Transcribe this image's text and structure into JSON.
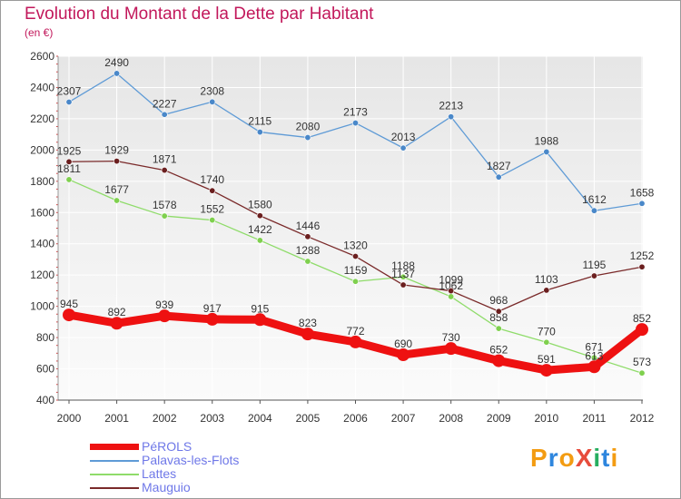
{
  "header": {
    "title": "Evolution du Montant de la Dette par Habitant",
    "subtitle": "(en €)"
  },
  "logo": {
    "text": "ProXiti",
    "colors": [
      "#f39c12",
      "#2e86de",
      "#f39c12",
      "#e74c3c",
      "#27ae60",
      "#2e86de",
      "#f39c12"
    ]
  },
  "chart_data": {
    "type": "line",
    "x": [
      "2000",
      "2001",
      "2002",
      "2003",
      "2004",
      "2005",
      "2006",
      "2007",
      "2008",
      "2009",
      "2010",
      "2011",
      "2012"
    ],
    "ylim": [
      400,
      2600
    ],
    "yticks": [
      "400",
      "600",
      "800",
      "1000",
      "1200",
      "1400",
      "1600",
      "1800",
      "2000",
      "2200",
      "2400",
      "2600"
    ],
    "grid": true,
    "legend_position": "bottom-left",
    "series": [
      {
        "name": "PéROLS",
        "color": "#ee1111",
        "values": [
          945,
          892,
          939,
          917,
          915,
          823,
          772,
          690,
          730,
          652,
          591,
          613,
          852
        ]
      },
      {
        "name": "Palavas-les-Flots",
        "color": "#5f9bd6",
        "values": [
          2307,
          2490,
          2227,
          2308,
          2115,
          2080,
          2173,
          2013,
          2213,
          1827,
          1988,
          1612,
          1658
        ]
      },
      {
        "name": "Lattes",
        "color": "#8fdc6a",
        "values": [
          1811,
          1677,
          1578,
          1552,
          1422,
          1288,
          1159,
          1188,
          1062,
          858,
          770,
          671,
          573
        ]
      },
      {
        "name": "Mauguio",
        "color": "#7a2a2a",
        "values": [
          1925,
          1929,
          1871,
          1740,
          1580,
          1446,
          1320,
          1137,
          1099,
          968,
          1103,
          1195,
          1252
        ]
      }
    ]
  }
}
